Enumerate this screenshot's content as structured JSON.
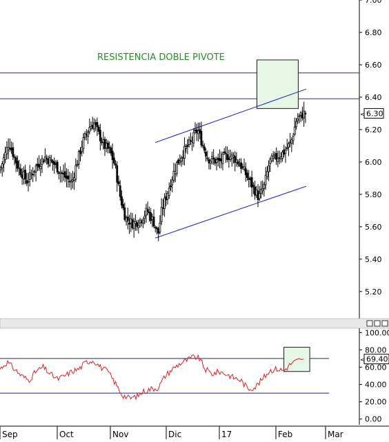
{
  "chart_data": [
    {
      "type": "candlestick",
      "annotation": "RESISTENCIA DOBLE PIVOTE",
      "current_label": "6.30",
      "ylim": [
        5.05,
        7.0
      ],
      "yticks": [
        "7.00",
        "6.80",
        "6.60",
        "6.40",
        "6.20",
        "6.00",
        "5.80",
        "5.60",
        "5.40",
        "5.20"
      ],
      "x_labels": [
        "Sep",
        "Oct",
        "Nov",
        "Dic",
        "17",
        "Feb",
        "Mar"
      ],
      "horizontal_levels": [
        6.55,
        6.39
      ],
      "trend_channel": {
        "upper": [
          [
            0.432,
            6.12
          ],
          [
            0.852,
            6.45
          ]
        ],
        "lower": [
          [
            0.432,
            5.53
          ],
          [
            0.852,
            5.85
          ]
        ]
      },
      "highlight_box": {
        "x": [
          0.715,
          0.83
        ],
        "y": [
          6.33,
          6.63
        ]
      },
      "close_anchors": [
        [
          0,
          5.95
        ],
        [
          0.025,
          6.12
        ],
        [
          0.05,
          5.97
        ],
        [
          0.075,
          5.88
        ],
        [
          0.1,
          5.97
        ],
        [
          0.125,
          6.03
        ],
        [
          0.15,
          5.99
        ],
        [
          0.175,
          5.92
        ],
        [
          0.2,
          5.87
        ],
        [
          0.212,
          5.98
        ],
        [
          0.23,
          6.12
        ],
        [
          0.25,
          6.22
        ],
        [
          0.262,
          6.24
        ],
        [
          0.275,
          6.17
        ],
        [
          0.29,
          6.1
        ],
        [
          0.305,
          6.07
        ],
        [
          0.32,
          5.98
        ],
        [
          0.335,
          5.78
        ],
        [
          0.35,
          5.65
        ],
        [
          0.37,
          5.62
        ],
        [
          0.39,
          5.64
        ],
        [
          0.41,
          5.7
        ],
        [
          0.43,
          5.62
        ],
        [
          0.44,
          5.55
        ],
        [
          0.45,
          5.7
        ],
        [
          0.47,
          5.84
        ],
        [
          0.49,
          5.98
        ],
        [
          0.51,
          6.06
        ],
        [
          0.53,
          6.12
        ],
        [
          0.55,
          6.2
        ],
        [
          0.565,
          6.1
        ],
        [
          0.58,
          6.02
        ],
        [
          0.61,
          6.0
        ],
        [
          0.63,
          6.04
        ],
        [
          0.65,
          6.03
        ],
        [
          0.67,
          5.98
        ],
        [
          0.69,
          5.9
        ],
        [
          0.705,
          5.84
        ],
        [
          0.72,
          5.78
        ],
        [
          0.735,
          5.85
        ],
        [
          0.75,
          6.0
        ],
        [
          0.77,
          6.03
        ],
        [
          0.79,
          6.06
        ],
        [
          0.81,
          6.12
        ],
        [
          0.825,
          6.26
        ],
        [
          0.845,
          6.3
        ]
      ]
    },
    {
      "type": "line",
      "current_label": "69.40",
      "ylim": [
        -5,
        105
      ],
      "yticks": [
        "100.00",
        "80.00",
        "60.00",
        "40.00",
        "20.00",
        "0.00"
      ],
      "horizontal_levels": [
        70,
        30
      ],
      "highlight_box": {
        "x": [
          0.79,
          0.862
        ],
        "y": [
          55,
          83
        ]
      },
      "anchors": [
        [
          0,
          58
        ],
        [
          0.02,
          66
        ],
        [
          0.04,
          58
        ],
        [
          0.06,
          50
        ],
        [
          0.08,
          45
        ],
        [
          0.1,
          55
        ],
        [
          0.12,
          60
        ],
        [
          0.14,
          52
        ],
        [
          0.16,
          46
        ],
        [
          0.18,
          50
        ],
        [
          0.2,
          55
        ],
        [
          0.22,
          58
        ],
        [
          0.24,
          66
        ],
        [
          0.26,
          68
        ],
        [
          0.28,
          60
        ],
        [
          0.3,
          55
        ],
        [
          0.32,
          42
        ],
        [
          0.34,
          28
        ],
        [
          0.36,
          24
        ],
        [
          0.38,
          26
        ],
        [
          0.4,
          32
        ],
        [
          0.42,
          35
        ],
        [
          0.44,
          36
        ],
        [
          0.46,
          50
        ],
        [
          0.48,
          58
        ],
        [
          0.5,
          64
        ],
        [
          0.52,
          68
        ],
        [
          0.54,
          72
        ],
        [
          0.555,
          70
        ],
        [
          0.57,
          58
        ],
        [
          0.59,
          52
        ],
        [
          0.61,
          55
        ],
        [
          0.63,
          52
        ],
        [
          0.65,
          48
        ],
        [
          0.67,
          45
        ],
        [
          0.69,
          35
        ],
        [
          0.71,
          37
        ],
        [
          0.73,
          46
        ],
        [
          0.75,
          56
        ],
        [
          0.77,
          58
        ],
        [
          0.79,
          56
        ],
        [
          0.81,
          64
        ],
        [
          0.83,
          68
        ],
        [
          0.845,
          69.4
        ]
      ]
    }
  ]
}
